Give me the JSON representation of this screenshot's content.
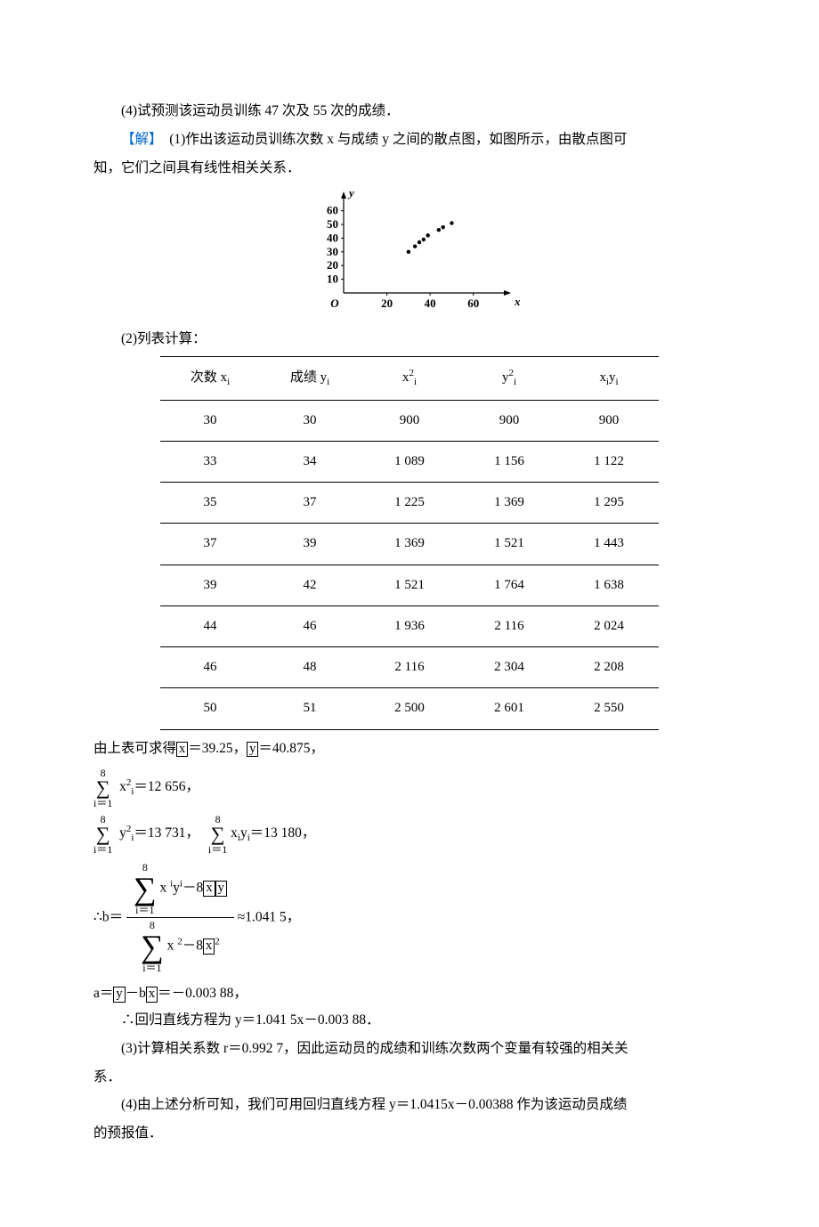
{
  "line4": "(4)试预测该运动员训练 47 次及 55 次的成绩．",
  "sol_label": "【解】",
  "sol_1a": "　(1)作出该运动员训练次数 x 与成绩 y 之间的散点图，如图所示，由散点图可",
  "sol_1b": "知，它们之间具有线性相关关系．",
  "line2_cap": "(2)列表计算：",
  "table": {
    "headers": {
      "c1_a": "次数 x",
      "c1_sub": "i",
      "c2_a": "成绩 y",
      "c2_sub": "i",
      "c3_a": "x",
      "c3_sup": "2",
      "c3_sub": "i",
      "c4_a": "y",
      "c4_sup": "2",
      "c4_sub": "i",
      "c5_a": "x",
      "c5_sub1": "i",
      "c5_b": "y",
      "c5_sub2": "i"
    },
    "rows": [
      [
        "30",
        "30",
        "900",
        "900",
        "900"
      ],
      [
        "33",
        "34",
        "1 089",
        "1 156",
        "1 122"
      ],
      [
        "35",
        "37",
        "1 225",
        "1 369",
        "1 295"
      ],
      [
        "37",
        "39",
        "1 369",
        "1 521",
        "1 443"
      ],
      [
        "39",
        "42",
        "1 521",
        "1 764",
        "1 638"
      ],
      [
        "44",
        "46",
        "1 936",
        "2 116",
        "2 024"
      ],
      [
        "46",
        "48",
        "2 116",
        "2 304",
        "2 208"
      ],
      [
        "50",
        "51",
        "2 500",
        "2 601",
        "2 550"
      ]
    ]
  },
  "after_table_1a": "由上表可求得",
  "xbar": "x",
  "xbar_val": "＝39.25，",
  "ybar": "y",
  "ybar_val": "＝40.875，",
  "sum_top": "8",
  "sum_bot": "i＝1",
  "sum_x2_body": " x",
  "sum939_x x_body_x": "x",
  "sum_x2_sup": "2",
  "sum_x2_sub": "i",
  "sum_x2_val": "＝12 656，",
  "sum_y2_body_y": "y",
  "sum_y2_sup": "2",
  "sum_y2_sub": "i",
  "sum_y2_val": "＝13 731，",
  "sum_xy_x": " x",
  "sum_xy_sub1": "i",
  "sum_xy_y": "y",
  "sum_xy_sub2": "i",
  "sum_xy_val": "＝13 180，",
  "b_prefix": "∴b＝",
  "num_a": " x ",
  "num_isup": "i",
  "num_b": "y",
  "num_isup2": "i",
  "num_c": "－8",
  "num_xbar": "x",
  "num_ybar": "y",
  "den_a": " x ",
  "den_sup": "2",
  "den_b": "－8",
  "den_xbar": "x",
  "den_xsup": "2",
  "b_approx": "≈1.041 5，",
  "a_line_a": "a＝",
  "a_ybar": "y",
  "a_mid": "－b",
  "a_xbar": "x",
  "a_val": "＝－0.003 88，",
  "reg_line": "∴回归直线方程为 y＝1.041 5x－0.003 88．",
  "line3_a": "(3)计算相关系数 r＝0.992 7，因此运动员的成绩和训练次数两个变量有较强的相关关",
  "line3_b": "系．",
  "line4b_a": "(4)由上述分析可知，我们可用回归直线方程 y＝1.0415x－0.00388 作为该运动员成绩",
  "line4b_b": "的预报值．",
  "scatter": {
    "y_ticks": [
      "60",
      "50",
      "40",
      "30",
      "20",
      "10"
    ],
    "x_ticks": [
      "20",
      "40",
      "60"
    ],
    "y_label": "y",
    "x_label": "x",
    "origin": "O",
    "points": [
      {
        "x": 30,
        "y": 30
      },
      {
        "x": 33,
        "y": 34
      },
      {
        "x": 35,
        "y": 37
      },
      {
        "x": 37,
        "y": 39
      },
      {
        "x": 39,
        "y": 42
      },
      {
        "x": 44,
        "y": 46
      },
      {
        "x": 46,
        "y": 48
      },
      {
        "x": 50,
        "y": 51
      }
    ],
    "colors": {
      "axis": "#000",
      "point": "#000"
    }
  }
}
